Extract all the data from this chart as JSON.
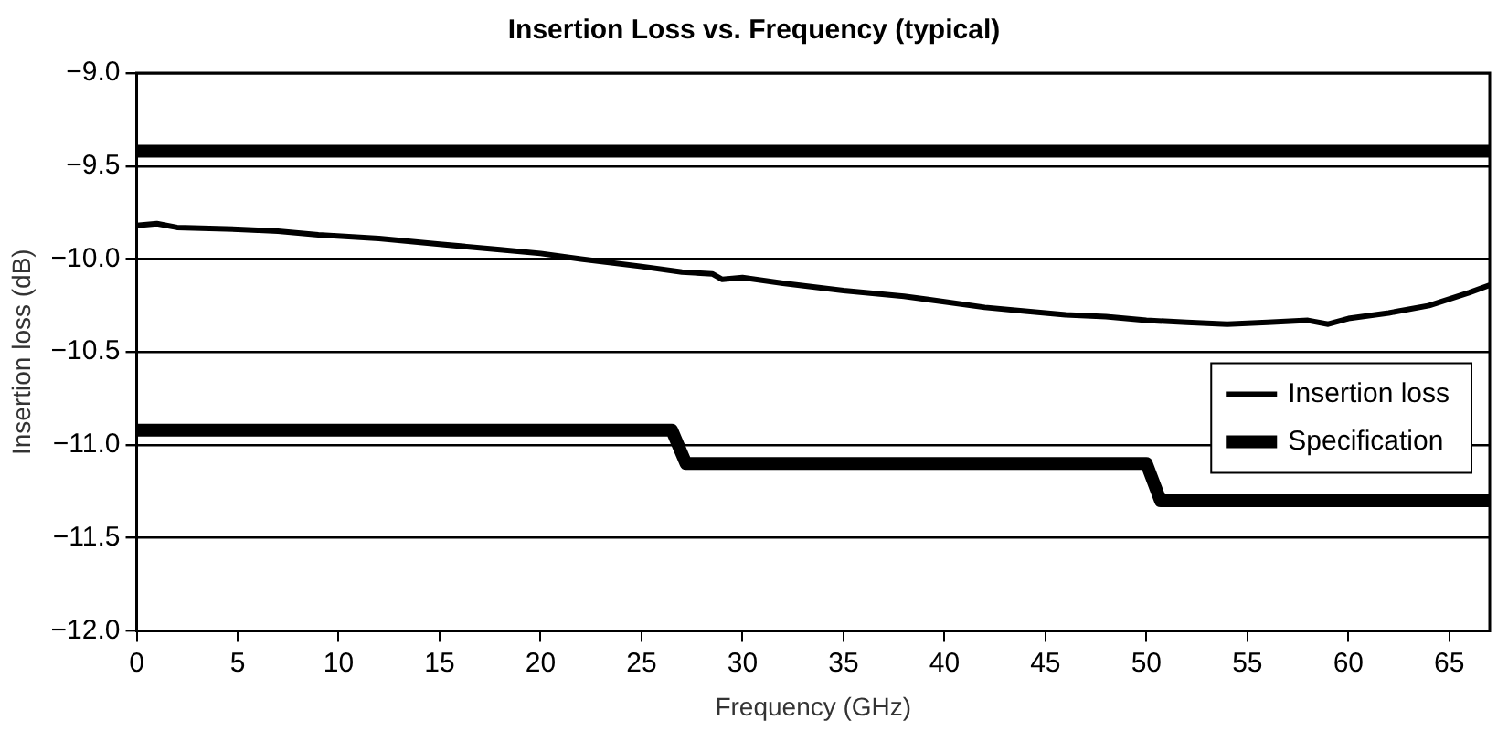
{
  "chart_data": {
    "type": "line",
    "title": "Insertion Loss vs. Frequency (typical)",
    "xlabel": "Frequency (GHz)",
    "ylabel": "Insertion loss (dB)",
    "xlim": [
      0,
      67
    ],
    "xticks": [
      0,
      5,
      10,
      15,
      20,
      25,
      30,
      35,
      40,
      45,
      50,
      55,
      60,
      65
    ],
    "ylim": [
      -12,
      -9
    ],
    "yticks": [
      {
        "value": -12,
        "label": "−12.0"
      },
      {
        "value": -11.5,
        "label": "−11.5"
      },
      {
        "value": -11,
        "label": "−11.0"
      },
      {
        "value": -10.5,
        "label": "−10.5"
      },
      {
        "value": -10,
        "label": "−10.0"
      },
      {
        "value": -9.5,
        "label": "−9.5"
      },
      {
        "value": -9,
        "label": "−9.0"
      }
    ],
    "grid": "y",
    "legend": "right",
    "marker": "none",
    "line_style": "solid",
    "series": [
      {
        "name": "Insertion loss",
        "color": "#000000",
        "x": [
          0,
          1,
          2,
          5,
          7,
          9,
          12,
          15,
          18,
          20,
          22,
          25,
          27,
          28.5,
          29,
          30,
          32,
          35,
          38,
          40,
          42,
          44,
          46,
          48,
          50,
          52,
          54,
          56,
          58,
          59,
          60,
          62,
          64,
          66,
          67
        ],
        "values": [
          -9.82,
          -9.81,
          -9.83,
          -9.84,
          -9.85,
          -9.87,
          -9.89,
          -9.92,
          -9.95,
          -9.97,
          -10.0,
          -10.04,
          -10.07,
          -10.08,
          -10.11,
          -10.1,
          -10.13,
          -10.17,
          -10.2,
          -10.23,
          -10.26,
          -10.28,
          -10.3,
          -10.31,
          -10.33,
          -10.34,
          -10.35,
          -10.34,
          -10.33,
          -10.35,
          -10.32,
          -10.29,
          -10.25,
          -10.18,
          -10.14
        ]
      },
      {
        "name": "Specification",
        "color": "#000000",
        "x": [
          0,
          26.5,
          27.2,
          50,
          50.7,
          67
        ],
        "values": [
          -10.92,
          -10.92,
          -11.1,
          -11.1,
          -11.3,
          -11.3
        ]
      },
      {
        "color": "#000000",
        "x": [
          0,
          67
        ],
        "values": [
          -9.42,
          -9.42
        ]
      }
    ]
  }
}
